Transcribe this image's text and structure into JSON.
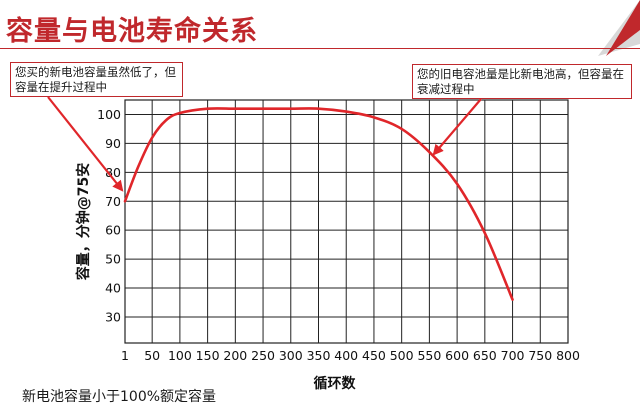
{
  "slide": {
    "title": "容量与电池寿命关系",
    "callouts": {
      "new_battery": "您买的新电池容量虽然低了，但容量在提升过程中",
      "old_battery": "您的旧电容池量是比新电池高，但容量在衰减过程中"
    },
    "footnote": "新电池容量小于100%额定容量"
  },
  "colors": {
    "accent": "#c0282c",
    "curve": "#e0262a",
    "grid": "#222222"
  },
  "chart_data": {
    "type": "line",
    "xlabel": "循环数",
    "ylabel": "容量，分钟@75安",
    "x_ticks": [
      "1",
      "50",
      "100",
      "150",
      "200",
      "250",
      "300",
      "350",
      "400",
      "450",
      "500",
      "550",
      "600",
      "650",
      "700",
      "750",
      "800"
    ],
    "y_ticks": [
      30,
      40,
      50,
      60,
      70,
      80,
      90,
      100
    ],
    "xlim": [
      1,
      800
    ],
    "ylim": [
      21,
      105
    ],
    "grid": true,
    "series": [
      {
        "x": [
          1,
          25,
          50,
          75,
          100,
          150,
          200,
          250,
          300,
          350,
          400,
          450,
          500,
          550,
          600,
          650,
          700
        ],
        "y": [
          70,
          82,
          92,
          98,
          100.5,
          102,
          102,
          102,
          102,
          102,
          101,
          99,
          95,
          87,
          76,
          59,
          36
        ]
      }
    ]
  }
}
